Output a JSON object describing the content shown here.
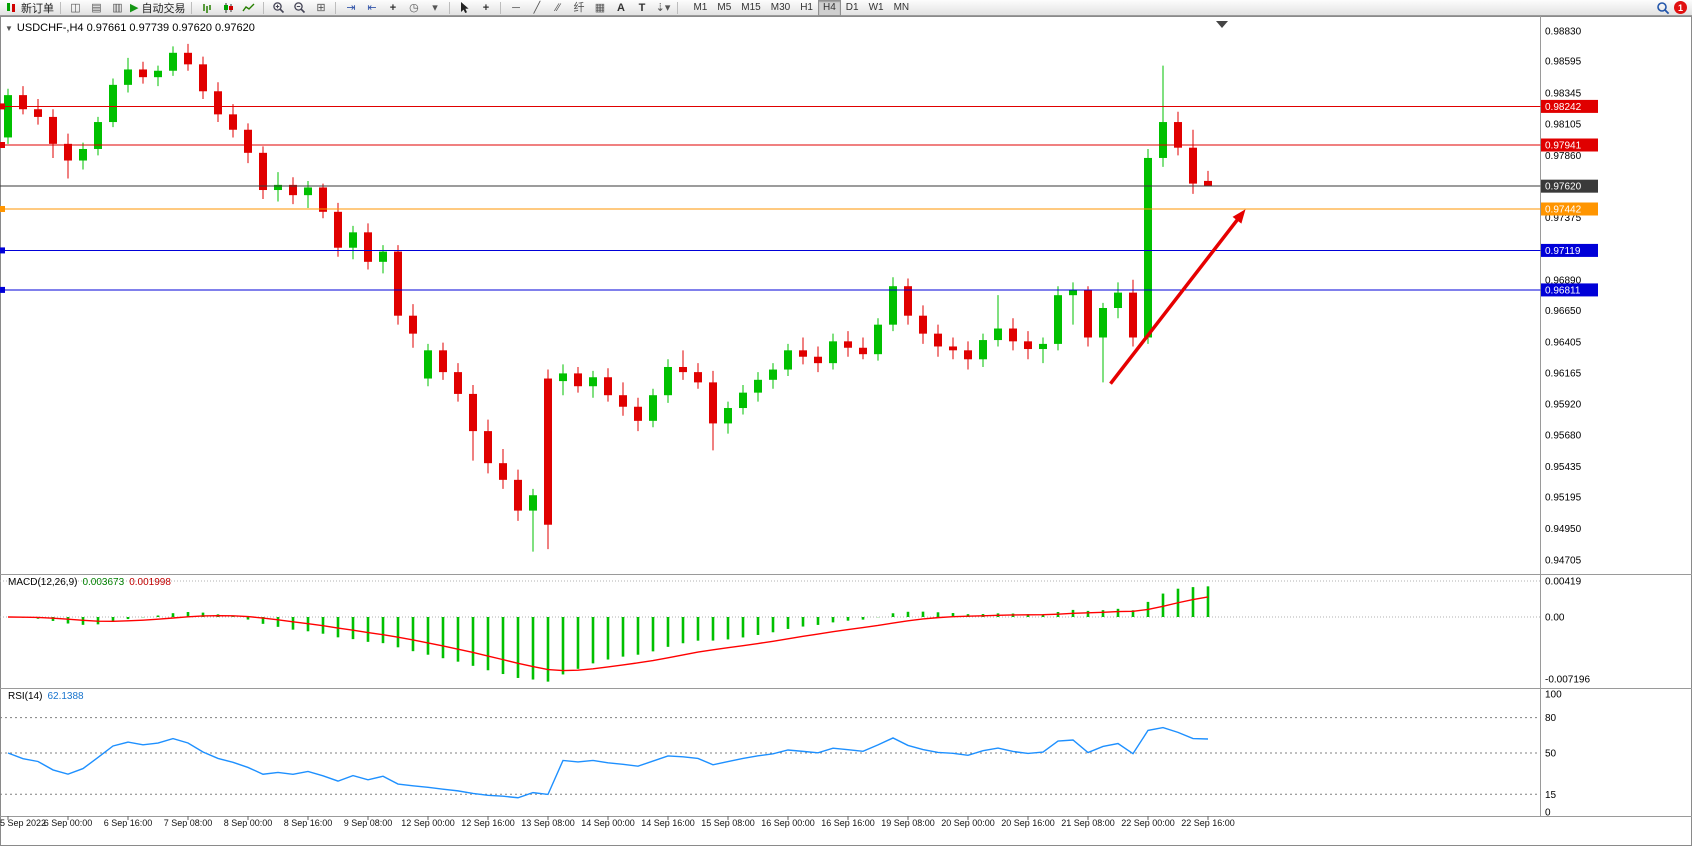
{
  "toolbar": {
    "new_order": "新订单",
    "auto_trading": "自动交易",
    "timeframes": [
      "M1",
      "M5",
      "M15",
      "M30",
      "H1",
      "H4",
      "D1",
      "W1",
      "MN"
    ],
    "active_timeframe": "H4",
    "badge": "1",
    "icons": {
      "new_chart": "◫",
      "profiles": "▤",
      "market_watch": "▥",
      "auto_play": "▶",
      "tile_windows": "⊞",
      "auto_scroll": "⇥",
      "chart_shift": "⇤",
      "add_indicator": "+",
      "clock": "◷",
      "templates": "▾",
      "crosshair": "+",
      "horizontal_line": "─",
      "trendline": "╱",
      "channel": "∕∕",
      "fibonacci": "纤",
      "shapes": "▦",
      "text_tool": "A",
      "label_tool": "T",
      "arrows_tool": "⇣",
      "dropdown": "▾"
    }
  },
  "chart": {
    "title": "USDCHF-,H4 0.97661 0.97739 0.97620 0.97620",
    "symbol": "USDCHF-",
    "period": "H4",
    "ohlc": {
      "open": "0.97661",
      "high": "0.97739",
      "low": "0.97620",
      "close": "0.97620"
    }
  },
  "chart_data": {
    "type": "candlestick",
    "symbol": "USDCHF",
    "period": "H4",
    "bull_color": "#00c000",
    "bear_color": "#e00000",
    "price_axis": {
      "max": 0.9883,
      "min": 0.94705,
      "ticks": [
        "0.98830",
        "0.98595",
        "0.98345",
        "0.98105",
        "0.97860",
        "0.97620",
        "0.97375",
        "0.97135",
        "0.96890",
        "0.96650",
        "0.96405",
        "0.96165",
        "0.95920",
        "0.95680",
        "0.95435",
        "0.95195",
        "0.94950",
        "0.94705"
      ]
    },
    "candles": [
      [
        0.98,
        0.9838,
        0.9795,
        0.9833
      ],
      [
        0.9833,
        0.984,
        0.9818,
        0.9822
      ],
      [
        0.9822,
        0.983,
        0.981,
        0.9816
      ],
      [
        0.9816,
        0.9822,
        0.9784,
        0.9795
      ],
      [
        0.9795,
        0.9803,
        0.9768,
        0.9782
      ],
      [
        0.9782,
        0.9796,
        0.9775,
        0.9791
      ],
      [
        0.9791,
        0.9816,
        0.9786,
        0.9812
      ],
      [
        0.9812,
        0.9846,
        0.9808,
        0.9841
      ],
      [
        0.9841,
        0.9862,
        0.9835,
        0.9853
      ],
      [
        0.9853,
        0.9859,
        0.9842,
        0.9847
      ],
      [
        0.9847,
        0.9856,
        0.984,
        0.9852
      ],
      [
        0.9852,
        0.9871,
        0.9848,
        0.9866
      ],
      [
        0.9866,
        0.9873,
        0.9852,
        0.9857
      ],
      [
        0.9857,
        0.9863,
        0.983,
        0.9836
      ],
      [
        0.9836,
        0.9843,
        0.9812,
        0.9818
      ],
      [
        0.9818,
        0.9826,
        0.98,
        0.9806
      ],
      [
        0.9806,
        0.9811,
        0.978,
        0.9788
      ],
      [
        0.9788,
        0.9793,
        0.9752,
        0.9759
      ],
      [
        0.9759,
        0.9773,
        0.975,
        0.9763
      ],
      [
        0.9763,
        0.9769,
        0.9748,
        0.9755
      ],
      [
        0.9755,
        0.9766,
        0.9745,
        0.9761
      ],
      [
        0.9761,
        0.9764,
        0.9737,
        0.9742
      ],
      [
        0.9742,
        0.9749,
        0.9707,
        0.9714
      ],
      [
        0.9714,
        0.9731,
        0.9705,
        0.9726
      ],
      [
        0.9726,
        0.9733,
        0.9697,
        0.9703
      ],
      [
        0.9703,
        0.9716,
        0.9694,
        0.9711
      ],
      [
        0.9711,
        0.9716,
        0.9654,
        0.9661
      ],
      [
        0.9661,
        0.967,
        0.9636,
        0.9647
      ],
      [
        0.9612,
        0.9639,
        0.9606,
        0.9634
      ],
      [
        0.9634,
        0.964,
        0.9611,
        0.9617
      ],
      [
        0.9617,
        0.9624,
        0.9594,
        0.96
      ],
      [
        0.96,
        0.9607,
        0.9548,
        0.9571
      ],
      [
        0.9571,
        0.958,
        0.9538,
        0.9546
      ],
      [
        0.9546,
        0.9557,
        0.9526,
        0.9533
      ],
      [
        0.9533,
        0.9541,
        0.9501,
        0.9509
      ],
      [
        0.9509,
        0.9526,
        0.9477,
        0.9521
      ],
      [
        0.9612,
        0.9619,
        0.9479,
        0.9498
      ],
      [
        0.961,
        0.9623,
        0.9599,
        0.9616
      ],
      [
        0.9616,
        0.9621,
        0.9601,
        0.9606
      ],
      [
        0.9606,
        0.9618,
        0.9597,
        0.9613
      ],
      [
        0.9613,
        0.962,
        0.9594,
        0.9599
      ],
      [
        0.9599,
        0.9609,
        0.9583,
        0.959
      ],
      [
        0.959,
        0.9597,
        0.9571,
        0.9579
      ],
      [
        0.9579,
        0.9604,
        0.9574,
        0.9599
      ],
      [
        0.9599,
        0.9627,
        0.9593,
        0.9621
      ],
      [
        0.9621,
        0.9634,
        0.9611,
        0.9617
      ],
      [
        0.9617,
        0.9624,
        0.9604,
        0.9609
      ],
      [
        0.9609,
        0.9618,
        0.9556,
        0.9577
      ],
      [
        0.9577,
        0.9594,
        0.9569,
        0.9589
      ],
      [
        0.9589,
        0.9607,
        0.9584,
        0.9601
      ],
      [
        0.9601,
        0.9617,
        0.9594,
        0.9611
      ],
      [
        0.9611,
        0.9624,
        0.9604,
        0.9619
      ],
      [
        0.9619,
        0.9639,
        0.9614,
        0.9634
      ],
      [
        0.9634,
        0.9644,
        0.9623,
        0.9629
      ],
      [
        0.9629,
        0.9637,
        0.9617,
        0.9624
      ],
      [
        0.9624,
        0.9647,
        0.9619,
        0.9641
      ],
      [
        0.9641,
        0.9649,
        0.9629,
        0.9636
      ],
      [
        0.9636,
        0.9644,
        0.9627,
        0.9631
      ],
      [
        0.9631,
        0.9659,
        0.9626,
        0.9654
      ],
      [
        0.9654,
        0.9691,
        0.9649,
        0.9684
      ],
      [
        0.9684,
        0.969,
        0.9654,
        0.9661
      ],
      [
        0.9661,
        0.9669,
        0.9639,
        0.9647
      ],
      [
        0.9647,
        0.9654,
        0.9629,
        0.9637
      ],
      [
        0.9637,
        0.9644,
        0.9627,
        0.9634
      ],
      [
        0.9634,
        0.9641,
        0.9619,
        0.9627
      ],
      [
        0.9627,
        0.9647,
        0.9621,
        0.9642
      ],
      [
        0.9642,
        0.9677,
        0.9637,
        0.9651
      ],
      [
        0.9651,
        0.9659,
        0.9634,
        0.9641
      ],
      [
        0.9641,
        0.9649,
        0.9627,
        0.9635
      ],
      [
        0.9635,
        0.9644,
        0.9624,
        0.9639
      ],
      [
        0.9639,
        0.9684,
        0.9634,
        0.9677
      ],
      [
        0.9677,
        0.9687,
        0.9654,
        0.9681
      ],
      [
        0.9681,
        0.9684,
        0.9637,
        0.9644
      ],
      [
        0.9644,
        0.9671,
        0.9609,
        0.9667
      ],
      [
        0.9667,
        0.9687,
        0.9659,
        0.9679
      ],
      [
        0.9679,
        0.9689,
        0.9637,
        0.9644
      ],
      [
        0.9644,
        0.9791,
        0.9639,
        0.9784
      ],
      [
        0.9784,
        0.9856,
        0.9777,
        0.9812
      ],
      [
        0.9812,
        0.982,
        0.9786,
        0.9792
      ],
      [
        0.9792,
        0.9806,
        0.9756,
        0.9764
      ],
      [
        0.97661,
        0.97739,
        0.9762,
        0.9762
      ]
    ],
    "time_labels": [
      {
        "index": 0,
        "text": "5 Sep 2022"
      },
      {
        "index": 4,
        "text": "6 Sep 00:00"
      },
      {
        "index": 8,
        "text": "6 Sep 16:00"
      },
      {
        "index": 12,
        "text": "7 Sep 08:00"
      },
      {
        "index": 16,
        "text": "8 Sep 00:00"
      },
      {
        "index": 20,
        "text": "8 Sep 16:00"
      },
      {
        "index": 24,
        "text": "9 Sep 08:00"
      },
      {
        "index": 28,
        "text": "12 Sep 00:00"
      },
      {
        "index": 32,
        "text": "12 Sep 16:00"
      },
      {
        "index": 36,
        "text": "13 Sep 08:00"
      },
      {
        "index": 40,
        "text": "14 Sep 00:00"
      },
      {
        "index": 44,
        "text": "14 Sep 16:00"
      },
      {
        "index": 48,
        "text": "15 Sep 08:00"
      },
      {
        "index": 52,
        "text": "16 Sep 00:00"
      },
      {
        "index": 56,
        "text": "16 Sep 16:00"
      },
      {
        "index": 60,
        "text": "19 Sep 08:00"
      },
      {
        "index": 64,
        "text": "20 Sep 00:00"
      },
      {
        "index": 68,
        "text": "20 Sep 16:00"
      },
      {
        "index": 72,
        "text": "21 Sep 08:00"
      },
      {
        "index": 76,
        "text": "22 Sep 00:00"
      },
      {
        "index": 80,
        "text": "22 Sep 16:00"
      }
    ],
    "hlines": [
      {
        "price": 0.98242,
        "label": "0.98242",
        "color": "#e00000",
        "current": false
      },
      {
        "price": 0.97941,
        "label": "0.97941",
        "color": "#e00000",
        "current": false
      },
      {
        "price": 0.9762,
        "label": "0.97620",
        "color": "#3a3a3a",
        "current": true
      },
      {
        "price": 0.97442,
        "label": "0.97442",
        "color": "#ff9500",
        "current": false
      },
      {
        "price": 0.97119,
        "label": "0.97119",
        "color": "#0000d8",
        "current": false
      },
      {
        "price": 0.96811,
        "label": "0.96811",
        "color": "#0000d8",
        "current": false
      }
    ],
    "current_price": "0.97620",
    "annotations": {
      "arrow": {
        "from_index": 73.5,
        "from_price": 0.9608,
        "to_index": 82.5,
        "to_price": 0.9744,
        "color": "#e60000"
      }
    },
    "macd": {
      "name": "MACD(12,26,9)",
      "value_main": "0.003673",
      "value_signal": "0.001998",
      "fast": 12,
      "slow": 26,
      "signal": 9,
      "histogram_color": "#00c000",
      "signal_color": "#ff0000",
      "axis": [
        {
          "label": "0.00419",
          "value": 0.00419
        },
        {
          "label": "0.00",
          "value": 0
        },
        {
          "label": "-0.007196",
          "value": -0.007196
        }
      ]
    },
    "rsi": {
      "name": "RSI(14)",
      "value": "62.1388",
      "period": 14,
      "line_color": "#1e90ff",
      "levels": [
        80,
        50,
        15
      ],
      "axis": [
        {
          "label": "100",
          "value": 100
        },
        {
          "label": "80",
          "value": 80
        },
        {
          "label": "50",
          "value": 50
        },
        {
          "label": "15",
          "value": 15
        },
        {
          "label": "0",
          "value": 0
        }
      ]
    }
  }
}
